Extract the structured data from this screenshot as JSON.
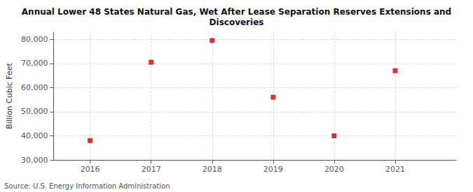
{
  "chart_data": {
    "type": "scatter",
    "title": "Annual Lower 48 States Natural Gas, Wet After Lease Separation Reserves Extensions and\nDiscoveries",
    "ylabel": "Billion Cubic Feet",
    "annotations": [
      "Source: U.S. Energy Information Administration"
    ],
    "x": [
      2016,
      2017,
      2018,
      2019,
      2020,
      2021
    ],
    "values": [
      38000,
      70500,
      79500,
      56000,
      40000,
      67000
    ],
    "color": "#cc0000",
    "marker": "square",
    "xlim": [
      2015.4,
      2022.0
    ],
    "xticks": [
      2016,
      2017,
      2018,
      2019,
      2020,
      2021
    ],
    "ylim": [
      30000,
      83000
    ],
    "yticks": [
      {
        "value": 30000,
        "label": "30,000"
      },
      {
        "value": 40000,
        "label": "40,000"
      },
      {
        "value": 50000,
        "label": "50,000"
      },
      {
        "value": 60000,
        "label": "60,000"
      },
      {
        "value": 70000,
        "label": "70,000"
      },
      {
        "value": 80000,
        "label": "80,000"
      }
    ],
    "grid": true
  }
}
